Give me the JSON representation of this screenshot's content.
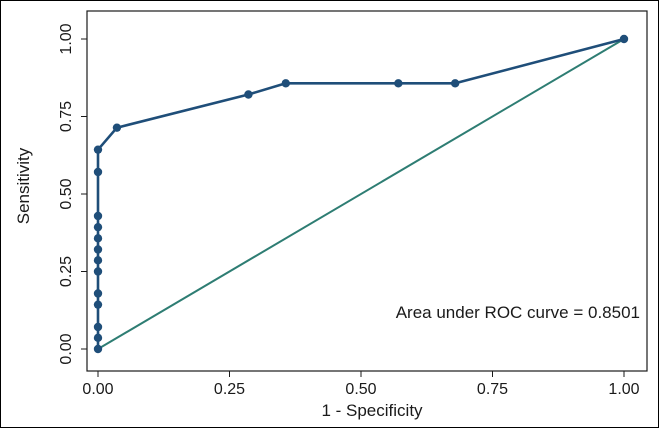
{
  "chart_data": {
    "type": "line",
    "xlabel": "1 - Specificity",
    "ylabel": "Sensitivity",
    "xlim": [
      0,
      1
    ],
    "ylim": [
      0,
      1
    ],
    "x_ticks": [
      "0.00",
      "0.25",
      "0.50",
      "0.75",
      "1.00"
    ],
    "y_ticks": [
      "0.00",
      "0.25",
      "0.50",
      "0.75",
      "1.00"
    ],
    "annotation": "Area under ROC curve = 0.8501",
    "grid": false,
    "legend": "none",
    "colors": {
      "roc_curve": "#1f4e79",
      "reference_line": "#2e7d73",
      "frame": "#1a1a1a"
    },
    "series": [
      {
        "values": [
          [
            0.0,
            0.0
          ],
          [
            0.0,
            0.036
          ],
          [
            0.0,
            0.071
          ],
          [
            0.0,
            0.143
          ],
          [
            0.0,
            0.179
          ],
          [
            0.0,
            0.25
          ],
          [
            0.0,
            0.286
          ],
          [
            0.0,
            0.321
          ],
          [
            0.0,
            0.357
          ],
          [
            0.0,
            0.393
          ],
          [
            0.0,
            0.429
          ],
          [
            0.0,
            0.571
          ],
          [
            0.0,
            0.643
          ],
          [
            0.036,
            0.714
          ],
          [
            0.286,
            0.821
          ],
          [
            0.357,
            0.857
          ],
          [
            0.571,
            0.857
          ],
          [
            0.679,
            0.857
          ],
          [
            1.0,
            1.0
          ]
        ]
      }
    ],
    "reference_line": [
      [
        0,
        0
      ],
      [
        1,
        1
      ]
    ]
  }
}
